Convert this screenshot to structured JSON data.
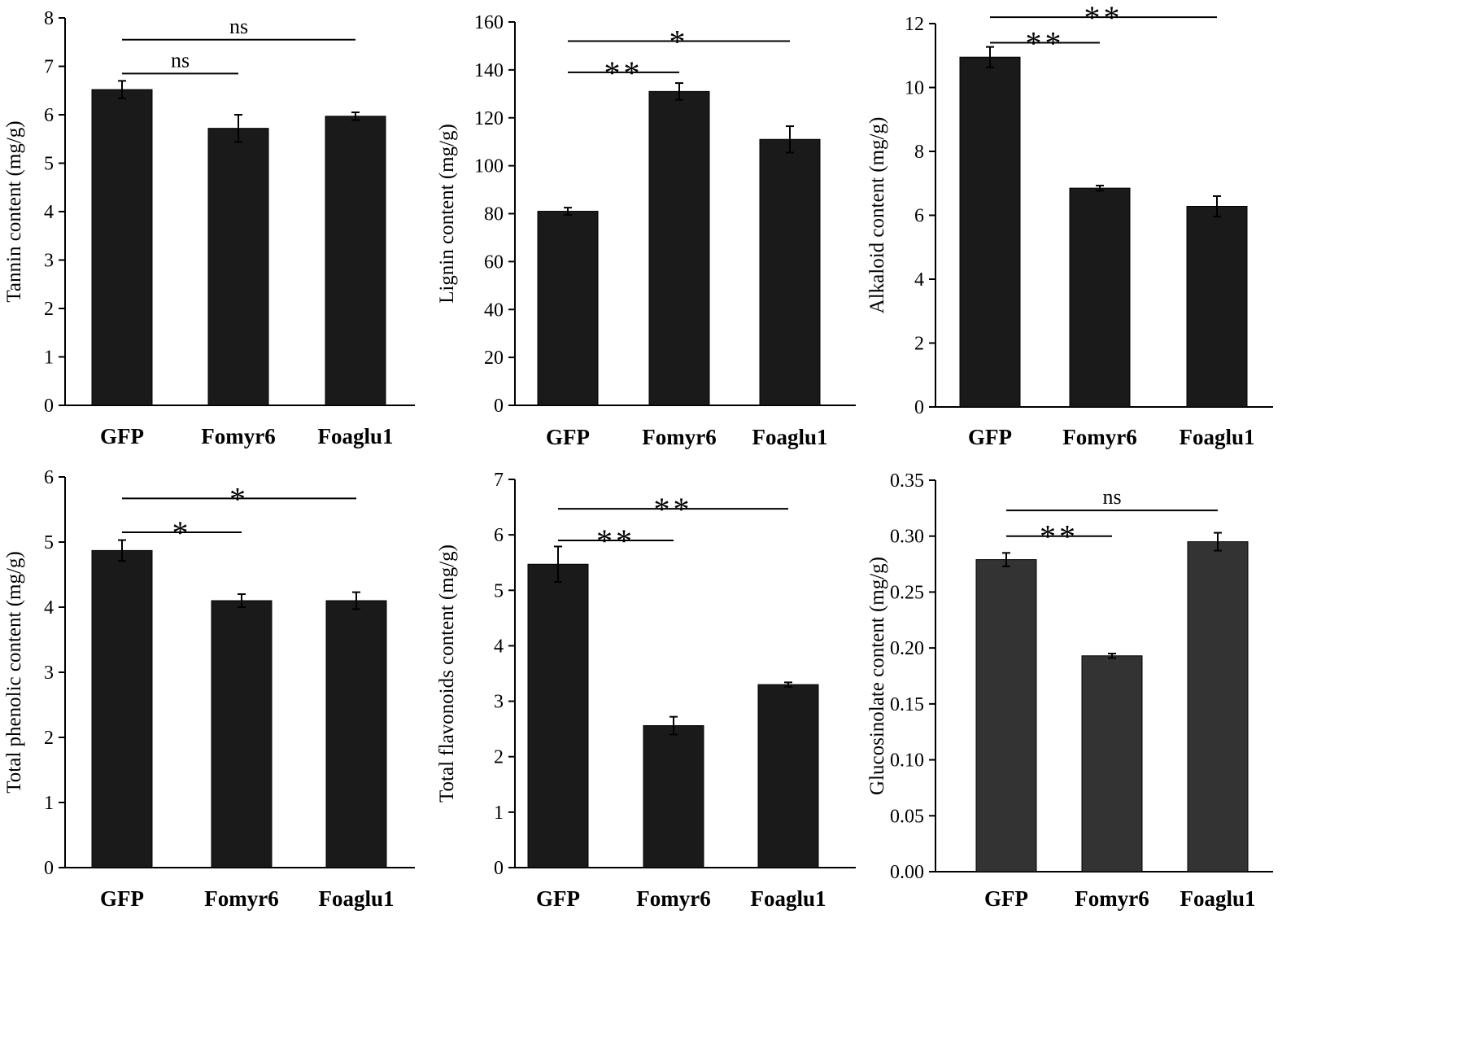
{
  "chart_data": [
    {
      "type": "bar",
      "ylabel": "Tannin content (mg/g)",
      "ylim": [
        0,
        8
      ],
      "yticks": [
        0,
        1,
        2,
        3,
        4,
        5,
        6,
        7,
        8
      ],
      "tick_decimals": 0,
      "categories": [
        "GFP",
        "Fomyr6",
        "Foaglu1"
      ],
      "values": [
        6.52,
        5.72,
        5.97
      ],
      "errors": [
        0.18,
        0.28,
        0.08
      ],
      "bar_color": "#1a1a1a",
      "significance": [
        {
          "from": 0,
          "to": 1,
          "label": "ns",
          "y": 6.85
        },
        {
          "from": 0,
          "to": 2,
          "label": "ns",
          "y": 7.55
        }
      ]
    },
    {
      "type": "bar",
      "ylabel": "Lignin content (mg/g)",
      "ylim": [
        0,
        160
      ],
      "yticks": [
        0,
        20,
        40,
        60,
        80,
        100,
        120,
        140,
        160
      ],
      "tick_decimals": 0,
      "categories": [
        "GFP",
        "Fomyr6",
        "Foaglu1"
      ],
      "values": [
        81,
        131,
        111
      ],
      "errors": [
        1.5,
        3.5,
        5.5
      ],
      "bar_color": "#1a1a1a",
      "significance": [
        {
          "from": 0,
          "to": 1,
          "label": "**",
          "y": 139
        },
        {
          "from": 0,
          "to": 2,
          "label": "*",
          "y": 152
        }
      ]
    },
    {
      "type": "bar",
      "ylabel": "Alkaloid content (mg/g)",
      "ylim": [
        0,
        12
      ],
      "yticks": [
        0,
        2,
        4,
        6,
        8,
        10,
        12
      ],
      "tick_decimals": 0,
      "categories": [
        "GFP",
        "Fomyr6",
        "Foaglu1"
      ],
      "values": [
        10.95,
        6.85,
        6.28
      ],
      "errors": [
        0.32,
        0.08,
        0.32
      ],
      "bar_color": "#1a1a1a",
      "significance": [
        {
          "from": 0,
          "to": 1,
          "label": "**",
          "y": 11.4
        },
        {
          "from": 0,
          "to": 2,
          "label": "**",
          "y": 12.2
        }
      ]
    },
    {
      "type": "bar",
      "ylabel": "Total phenolic content (mg/g)",
      "ylim": [
        0,
        6
      ],
      "yticks": [
        0,
        1,
        2,
        3,
        4,
        5,
        6
      ],
      "tick_decimals": 0,
      "categories": [
        "GFP",
        "Fomyr6",
        "Foaglu1"
      ],
      "values": [
        4.87,
        4.1,
        4.1
      ],
      "errors": [
        0.16,
        0.1,
        0.13
      ],
      "bar_color": "#1a1a1a",
      "significance": [
        {
          "from": 0,
          "to": 1,
          "label": "*",
          "y": 5.15
        },
        {
          "from": 0,
          "to": 2,
          "label": "*",
          "y": 5.67
        }
      ]
    },
    {
      "type": "bar",
      "ylabel": "Total flavonoids content (mg/g)",
      "ylim": [
        0,
        7
      ],
      "yticks": [
        0,
        1,
        2,
        3,
        4,
        5,
        6,
        7
      ],
      "tick_decimals": 0,
      "categories": [
        "GFP",
        "Fomyr6",
        "Foaglu1"
      ],
      "values": [
        5.47,
        2.56,
        3.3
      ],
      "errors": [
        0.32,
        0.16,
        0.04
      ],
      "bar_color": "#1a1a1a",
      "significance": [
        {
          "from": 0,
          "to": 1,
          "label": "**",
          "y": 5.9
        },
        {
          "from": 0,
          "to": 2,
          "label": "**",
          "y": 6.47
        }
      ]
    },
    {
      "type": "bar",
      "ylabel": "Glucosinolate content (mg/g)",
      "ylim": [
        0,
        0.35
      ],
      "yticks": [
        0.0,
        0.05,
        0.1,
        0.15,
        0.2,
        0.25,
        0.3,
        0.35
      ],
      "tick_decimals": 2,
      "categories": [
        "GFP",
        "Fomyr6",
        "Foaglu1"
      ],
      "values": [
        0.279,
        0.193,
        0.295
      ],
      "errors": [
        0.006,
        0.002,
        0.008
      ],
      "bar_color": "#333333",
      "significance": [
        {
          "from": 0,
          "to": 1,
          "label": "**",
          "y": 0.3
        },
        {
          "from": 0,
          "to": 2,
          "label": "ns",
          "y": 0.323
        }
      ]
    }
  ]
}
